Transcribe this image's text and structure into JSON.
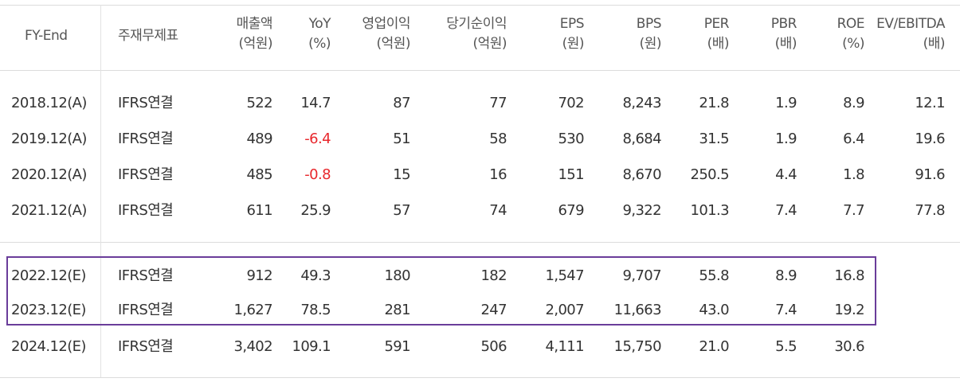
{
  "header": {
    "fy_end": "FY-End",
    "main_statement": "주재무제표",
    "revenue": "매출액",
    "revenue_unit": "(억원)",
    "yoy": "YoY",
    "yoy_unit": "(%)",
    "op_income": "영업이익",
    "op_income_unit": "(억원)",
    "net_income": "당기순이익",
    "net_income_unit": "(억원)",
    "eps": "EPS",
    "eps_unit": "(원)",
    "bps": "BPS",
    "bps_unit": "(원)",
    "per": "PER",
    "per_unit": "(배)",
    "pbr": "PBR",
    "pbr_unit": "(배)",
    "roe": "ROE",
    "roe_unit": "(%)",
    "ev_ebitda": "EV/EBITDA",
    "ev_ebitda_unit": "(배)"
  },
  "rows": [
    {
      "fy": "2018.12(A)",
      "stmt": "IFRS연결",
      "revenue": "522",
      "yoy": "14.7",
      "op": "87",
      "net": "77",
      "eps": "702",
      "bps": "8,243",
      "per": "21.8",
      "pbr": "1.9",
      "roe": "8.9",
      "ev": "12.1"
    },
    {
      "fy": "2019.12(A)",
      "stmt": "IFRS연결",
      "revenue": "489",
      "yoy": "-6.4",
      "op": "51",
      "net": "58",
      "eps": "530",
      "bps": "8,684",
      "per": "31.5",
      "pbr": "1.9",
      "roe": "6.4",
      "ev": "19.6"
    },
    {
      "fy": "2020.12(A)",
      "stmt": "IFRS연결",
      "revenue": "485",
      "yoy": "-0.8",
      "op": "15",
      "net": "16",
      "eps": "151",
      "bps": "8,670",
      "per": "250.5",
      "pbr": "4.4",
      "roe": "1.8",
      "ev": "91.6"
    },
    {
      "fy": "2021.12(A)",
      "stmt": "IFRS연결",
      "revenue": "611",
      "yoy": "25.9",
      "op": "57",
      "net": "74",
      "eps": "679",
      "bps": "9,322",
      "per": "101.3",
      "pbr": "7.4",
      "roe": "7.7",
      "ev": "77.8"
    },
    {
      "fy": "2022.12(E)",
      "stmt": "IFRS연결",
      "revenue": "912",
      "yoy": "49.3",
      "op": "180",
      "net": "182",
      "eps": "1,547",
      "bps": "9,707",
      "per": "55.8",
      "pbr": "8.9",
      "roe": "16.8",
      "ev": ""
    },
    {
      "fy": "2023.12(E)",
      "stmt": "IFRS연결",
      "revenue": "1,627",
      "yoy": "78.5",
      "op": "281",
      "net": "247",
      "eps": "2,007",
      "bps": "11,663",
      "per": "43.0",
      "pbr": "7.4",
      "roe": "19.2",
      "ev": ""
    },
    {
      "fy": "2024.12(E)",
      "stmt": "IFRS연결",
      "revenue": "3,402",
      "yoy": "109.1",
      "op": "591",
      "net": "506",
      "eps": "4,111",
      "bps": "15,750",
      "per": "21.0",
      "pbr": "5.5",
      "roe": "30.6",
      "ev": ""
    }
  ],
  "colors": {
    "negative": "#e8272c",
    "highlight_border": "#6a3d9a",
    "rule": "#dcdcdc"
  }
}
